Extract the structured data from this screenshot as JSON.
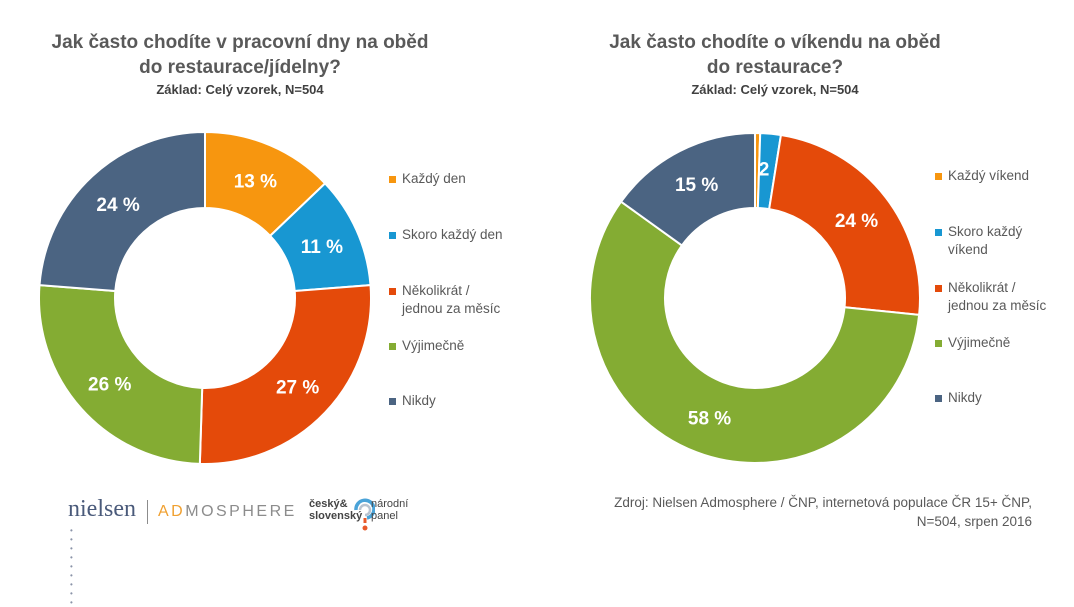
{
  "charts": [
    {
      "title_line1": "Jak často chodíte v pracovní dny na oběd",
      "title_line2": "do restaurace/jídelny?",
      "subtitle": "Základ: Celý vzorek, N=504"
    },
    {
      "title_line1": "Jak často chodíte o víkendu na oběd",
      "title_line2": "do restaurace?",
      "subtitle": "Základ: Celý vzorek, N=504"
    }
  ],
  "chart_data": [
    {
      "type": "pie",
      "variant": "donut",
      "title": "Jak často chodíte v pracovní dny na oběd do restaurace/jídelny?",
      "subtitle": "Základ: Celý vzorek, N=504",
      "categories": [
        "Každý den",
        "Skoro každý den",
        "Několikrát / jednou za měsíc",
        "Výjimečně",
        "Nikdy"
      ],
      "values": [
        13,
        11,
        27,
        26,
        24
      ],
      "data_labels": [
        "13 %",
        "11 %",
        "27 %",
        "26 %",
        "24 %"
      ],
      "colors": [
        "#F7960F",
        "#1897D2",
        "#E44A0A",
        "#84AC33",
        "#4B6482"
      ],
      "legend": {
        "position": "right",
        "items": [
          "Každý den",
          "Skoro každý den",
          "Několikrát /\njednou za měsíc",
          "Výjimečně",
          "Nikdy"
        ]
      }
    },
    {
      "type": "pie",
      "variant": "donut",
      "title": "Jak často chodíte o víkendu na oběd do restaurace?",
      "subtitle": "Základ: Celý vzorek, N=504",
      "categories": [
        "Každý víkend",
        "Skoro každý víkend",
        "Několikrát / jednou za měsíc",
        "Výjimečně",
        "Nikdy"
      ],
      "values": [
        0.5,
        2,
        24,
        58,
        15
      ],
      "data_labels": [
        "",
        "2 %",
        "24 %",
        "58 %",
        "15 %"
      ],
      "colors": [
        "#F7960F",
        "#1897D2",
        "#E44A0A",
        "#84AC33",
        "#4B6482"
      ],
      "legend": {
        "position": "right",
        "items": [
          "Každý víkend",
          "Skoro každý\nvíkend",
          "Několikrát /\njednou za měsíc",
          "Výjimečně",
          "Nikdy"
        ]
      }
    }
  ],
  "footer": {
    "logo_nielsen": "nielsen",
    "logo_nielsen_dots": "• • • • • • • • •",
    "logo_admosphere_ad": "AD",
    "logo_admosphere_rest": "MOSPHERE",
    "logo_cs_line1": "český&",
    "logo_cs_line2": "slovenský",
    "logo_np_line1": "národní",
    "logo_np_line2": "panel",
    "source_line1": "Zdroj: Nielsen Admosphere / ČNP, internetová populace ČR 15+ ČNP,",
    "source_line2": "N=504, srpen 2016"
  }
}
